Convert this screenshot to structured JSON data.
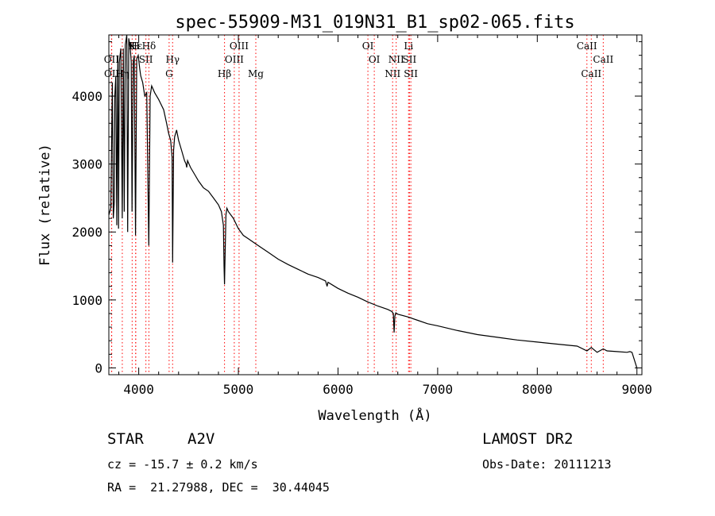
{
  "chart_data": {
    "type": "line",
    "title": "spec-55909-M31_019N31_B1_sp02-065.fits",
    "xlabel": "Wavelength (Å)",
    "ylabel": "Flux (relative)",
    "xlim": [
      3700,
      9050
    ],
    "ylim": [
      -100,
      4900
    ],
    "xticks": [
      4000,
      5000,
      6000,
      7000,
      8000,
      9000
    ],
    "yticks": [
      0,
      1000,
      2000,
      3000,
      4000
    ],
    "grid": false,
    "line_color": "#000000",
    "marker_color": "#ff0000",
    "series": [
      {
        "x": [
          3700,
          3720,
          3735,
          3745,
          3755,
          3760,
          3770,
          3780,
          3790,
          3797,
          3805,
          3820,
          3835,
          3845,
          3855,
          3865,
          3880,
          3889,
          3900,
          3915,
          3925,
          3933,
          3945,
          3955,
          3968,
          3980,
          3995,
          4010,
          4020,
          4040,
          4060,
          4080,
          4101,
          4115,
          4130,
          4160,
          4200,
          4250,
          4280,
          4300,
          4320,
          4335,
          4340,
          4350,
          4360,
          4380,
          4400,
          4430,
          4460,
          4475,
          4481,
          4490,
          4520,
          4560,
          4600,
          4650,
          4700,
          4750,
          4800,
          4830,
          4850,
          4856,
          4861,
          4867,
          4875,
          4885,
          4900,
          4950,
          5000,
          5050,
          5100,
          5150,
          5200,
          5300,
          5400,
          5500,
          5600,
          5700,
          5800,
          5875,
          5890,
          5900,
          6000,
          6100,
          6200,
          6300,
          6400,
          6500,
          6540,
          6555,
          6563,
          6570,
          6580,
          6600,
          6700,
          6800,
          6900,
          7000,
          7200,
          7400,
          7600,
          7800,
          8000,
          8200,
          8400,
          8498,
          8542,
          8600,
          8662,
          8700,
          8800,
          8900,
          8930,
          8950,
          9000
        ],
        "y": [
          2250,
          2350,
          4200,
          2200,
          2450,
          4000,
          4300,
          2100,
          4600,
          2050,
          4500,
          4700,
          2200,
          4700,
          2300,
          4750,
          4900,
          2000,
          4850,
          4700,
          4500,
          2300,
          4500,
          4600,
          1950,
          4550,
          4600,
          4400,
          4300,
          4200,
          4000,
          4050,
          1800,
          4000,
          4150,
          4050,
          3950,
          3800,
          3600,
          3450,
          3350,
          3100,
          1550,
          3200,
          3400,
          3500,
          3350,
          3200,
          3050,
          3000,
          2950,
          3050,
          2950,
          2850,
          2750,
          2650,
          2600,
          2500,
          2400,
          2300,
          2100,
          1500,
          1230,
          1700,
          2250,
          2350,
          2300,
          2200,
          2050,
          1950,
          1900,
          1850,
          1800,
          1700,
          1600,
          1520,
          1450,
          1380,
          1330,
          1280,
          1200,
          1260,
          1170,
          1100,
          1040,
          970,
          910,
          860,
          830,
          800,
          520,
          760,
          810,
          790,
          750,
          700,
          650,
          620,
          550,
          490,
          450,
          410,
          380,
          350,
          320,
          250,
          300,
          230,
          280,
          250,
          240,
          230,
          240,
          230,
          0
        ]
      }
    ],
    "lines": [
      {
        "name": "Hε",
        "wl": 3970,
        "row": 1
      },
      {
        "name": "K",
        "wl": 3934,
        "row": 1
      },
      {
        "name": "H",
        "wl": 3969,
        "row": 1
      },
      {
        "name": "Hδ",
        "wl": 4102,
        "row": 1
      },
      {
        "name": "OIII",
        "wl": 5007,
        "row": 1
      },
      {
        "name": "OI",
        "wl": 6300,
        "row": 1
      },
      {
        "name": "Li",
        "wl": 6708,
        "row": 1
      },
      {
        "name": "CaII",
        "wl": 8498,
        "row": 1
      },
      {
        "name": "OII",
        "wl": 3727,
        "row": 2
      },
      {
        "name": "SII",
        "wl": 4072,
        "row": 2
      },
      {
        "name": "Hγ",
        "wl": 4340,
        "row": 2
      },
      {
        "name": "OIII",
        "wl": 4959,
        "row": 2
      },
      {
        "name": "OI",
        "wl": 6364,
        "row": 2
      },
      {
        "name": "NII",
        "wl": 6584,
        "row": 2
      },
      {
        "name": "SII",
        "wl": 6717,
        "row": 2
      },
      {
        "name": "CaII",
        "wl": 8662,
        "row": 2
      },
      {
        "name": "OII",
        "wl": 3729,
        "row": 3
      },
      {
        "name": "Hη",
        "wl": 3835,
        "row": 3
      },
      {
        "name": "G",
        "wl": 4305,
        "row": 3
      },
      {
        "name": "Hβ",
        "wl": 4861,
        "row": 3
      },
      {
        "name": "Mg",
        "wl": 5175,
        "row": 3
      },
      {
        "name": "NII",
        "wl": 6548,
        "row": 3
      },
      {
        "name": "SII",
        "wl": 6731,
        "row": 3
      },
      {
        "name": "CaII",
        "wl": 8542,
        "row": 3
      }
    ]
  },
  "info": {
    "class_label": "STAR",
    "subclass": "A2V",
    "survey": "LAMOST DR2",
    "redshift": "cz = -15.7 ± 0.2 km/s",
    "obs_date": "Obs-Date: 20111213",
    "coords": "RA =  21.27988, DEC =  30.44045"
  }
}
